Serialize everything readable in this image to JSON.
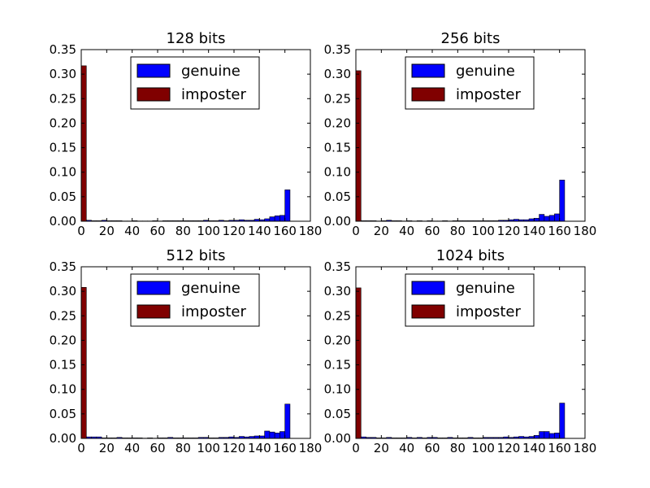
{
  "chart_data": [
    {
      "type": "bar",
      "title": "128 bits",
      "xlim": [
        0,
        180
      ],
      "ylim": [
        0,
        0.35
      ],
      "xticks": [
        "0",
        "20",
        "40",
        "60",
        "80",
        "100",
        "120",
        "140",
        "160",
        "180"
      ],
      "yticks": [
        "0.00",
        "0.05",
        "0.10",
        "0.15",
        "0.20",
        "0.25",
        "0.30",
        "0.35"
      ],
      "grid": false,
      "legend_position": "top-center",
      "series": [
        {
          "name": "genuine",
          "color": "#0000ff",
          "x": [
            0,
            4,
            8,
            12,
            16,
            20,
            24,
            28,
            32,
            36,
            40,
            44,
            48,
            52,
            56,
            60,
            64,
            68,
            72,
            76,
            80,
            84,
            88,
            92,
            96,
            100,
            104,
            108,
            112,
            116,
            120,
            124,
            128,
            132,
            136,
            140,
            144,
            148,
            152,
            156,
            160
          ],
          "values": [
            0.003,
            0.002,
            0.001,
            0.001,
            0.002,
            0.001,
            0.001,
            0.001,
            0.0005,
            0.0005,
            0.001,
            0.0005,
            0.0005,
            0.0005,
            0.001,
            0.0005,
            0.001,
            0.001,
            0.001,
            0.001,
            0.001,
            0.001,
            0.001,
            0.001,
            0.002,
            0.001,
            0.001,
            0.002,
            0.001,
            0.002,
            0.002,
            0.003,
            0.002,
            0.002,
            0.004,
            0.003,
            0.005,
            0.009,
            0.011,
            0.012,
            0.064
          ]
        },
        {
          "name": "imposter",
          "color": "#800000",
          "x": [
            0
          ],
          "values": [
            0.317
          ]
        }
      ]
    },
    {
      "type": "bar",
      "title": "256 bits",
      "xlim": [
        0,
        180
      ],
      "ylim": [
        0,
        0.35
      ],
      "xticks": [
        "0",
        "20",
        "40",
        "60",
        "80",
        "100",
        "120",
        "140",
        "160",
        "180"
      ],
      "yticks": [
        "0.00",
        "0.05",
        "0.10",
        "0.15",
        "0.20",
        "0.25",
        "0.30",
        "0.35"
      ],
      "grid": false,
      "legend_position": "top-center",
      "series": [
        {
          "name": "genuine",
          "color": "#0000ff",
          "x": [
            0,
            4,
            8,
            12,
            16,
            20,
            24,
            28,
            32,
            36,
            40,
            44,
            48,
            52,
            56,
            60,
            64,
            68,
            72,
            76,
            80,
            84,
            88,
            92,
            96,
            100,
            104,
            108,
            112,
            116,
            120,
            124,
            128,
            132,
            136,
            140,
            144,
            148,
            152,
            156,
            160
          ],
          "values": [
            0.003,
            0.001,
            0.001,
            0.001,
            0.0005,
            0.001,
            0.002,
            0.001,
            0.001,
            0.0005,
            0.001,
            0.0005,
            0.001,
            0.0005,
            0.001,
            0.0005,
            0.0005,
            0.001,
            0.0005,
            0.001,
            0.001,
            0.001,
            0.001,
            0.001,
            0.001,
            0.001,
            0.001,
            0.001,
            0.002,
            0.002,
            0.003,
            0.004,
            0.003,
            0.003,
            0.005,
            0.006,
            0.014,
            0.01,
            0.012,
            0.015,
            0.084
          ]
        },
        {
          "name": "imposter",
          "color": "#800000",
          "x": [
            0
          ],
          "values": [
            0.307
          ]
        }
      ]
    },
    {
      "type": "bar",
      "title": "512 bits",
      "xlim": [
        0,
        180
      ],
      "ylim": [
        0,
        0.35
      ],
      "xticks": [
        "0",
        "20",
        "40",
        "60",
        "80",
        "100",
        "120",
        "140",
        "160",
        "180"
      ],
      "yticks": [
        "0.00",
        "0.05",
        "0.10",
        "0.15",
        "0.20",
        "0.25",
        "0.30",
        "0.35"
      ],
      "grid": false,
      "legend_position": "top-center",
      "series": [
        {
          "name": "genuine",
          "color": "#0000ff",
          "x": [
            0,
            4,
            8,
            12,
            16,
            20,
            24,
            28,
            32,
            36,
            40,
            44,
            48,
            52,
            56,
            60,
            64,
            68,
            72,
            76,
            80,
            84,
            88,
            92,
            96,
            100,
            104,
            108,
            112,
            116,
            120,
            124,
            128,
            132,
            136,
            140,
            144,
            148,
            152,
            156,
            160
          ],
          "values": [
            0.004,
            0.003,
            0.003,
            0.003,
            0.001,
            0.001,
            0.001,
            0.002,
            0.001,
            0.001,
            0.001,
            0.001,
            0.0005,
            0.001,
            0.0005,
            0.001,
            0.001,
            0.002,
            0.001,
            0.001,
            0.001,
            0.001,
            0.001,
            0.002,
            0.002,
            0.001,
            0.001,
            0.002,
            0.002,
            0.003,
            0.002,
            0.004,
            0.003,
            0.004,
            0.005,
            0.005,
            0.015,
            0.013,
            0.011,
            0.014,
            0.07
          ]
        },
        {
          "name": "imposter",
          "color": "#800000",
          "x": [
            0
          ],
          "values": [
            0.308
          ]
        }
      ]
    },
    {
      "type": "bar",
      "title": "1024 bits",
      "xlim": [
        0,
        180
      ],
      "ylim": [
        0,
        0.35
      ],
      "xticks": [
        "0",
        "20",
        "40",
        "60",
        "80",
        "100",
        "120",
        "140",
        "160",
        "180"
      ],
      "yticks": [
        "0.00",
        "0.05",
        "0.10",
        "0.15",
        "0.20",
        "0.25",
        "0.30",
        "0.35"
      ],
      "grid": false,
      "legend_position": "top-center",
      "series": [
        {
          "name": "genuine",
          "color": "#0000ff",
          "x": [
            0,
            4,
            8,
            12,
            16,
            20,
            24,
            28,
            32,
            36,
            40,
            44,
            48,
            52,
            56,
            60,
            64,
            68,
            72,
            76,
            80,
            84,
            88,
            92,
            96,
            100,
            104,
            108,
            112,
            116,
            120,
            124,
            128,
            132,
            136,
            140,
            144,
            148,
            152,
            156,
            160
          ],
          "values": [
            0.005,
            0.003,
            0.002,
            0.002,
            0.001,
            0.001,
            0.002,
            0.001,
            0.001,
            0.001,
            0.002,
            0.001,
            0.002,
            0.001,
            0.002,
            0.002,
            0.001,
            0.001,
            0.002,
            0.001,
            0.001,
            0.001,
            0.002,
            0.001,
            0.001,
            0.002,
            0.002,
            0.002,
            0.002,
            0.003,
            0.002,
            0.003,
            0.004,
            0.003,
            0.004,
            0.006,
            0.014,
            0.014,
            0.01,
            0.011,
            0.072
          ]
        },
        {
          "name": "imposter",
          "color": "#800000",
          "x": [
            0
          ],
          "values": [
            0.307
          ]
        }
      ]
    }
  ]
}
